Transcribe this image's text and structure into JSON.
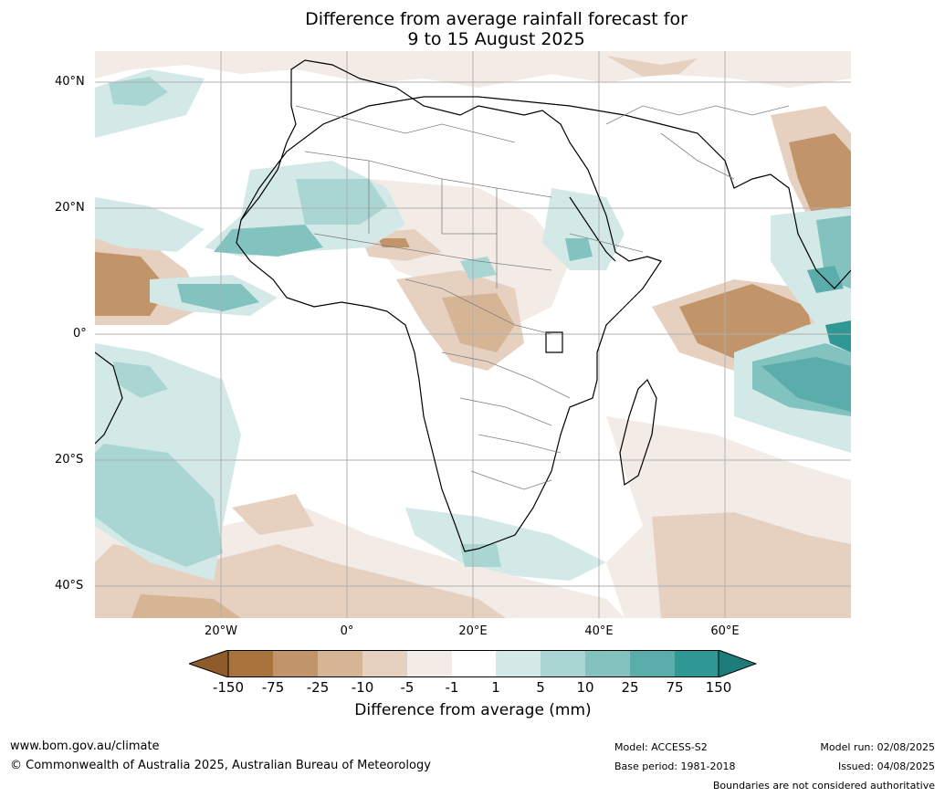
{
  "title": {
    "line1": "Difference from average rainfall forecast for",
    "line2": "9 to 15 August 2025"
  },
  "axes": {
    "lat_ticks": [
      "40°N",
      "20°N",
      "0°",
      "20°S",
      "40°S"
    ],
    "lon_ticks": [
      "20°W",
      "0°",
      "20°E",
      "40°E",
      "60°E"
    ]
  },
  "colorbar": {
    "labels": [
      "-150",
      "-75",
      "-25",
      "-10",
      "-5",
      "-1",
      "1",
      "5",
      "10",
      "25",
      "75",
      "150"
    ],
    "title": "Difference from average (mm)",
    "colors": [
      "#8f5b2b",
      "#a9733d",
      "#c29469",
      "#d6b595",
      "#e6d1c1",
      "#f3ebe5",
      "#ffffff",
      "#d3e9e7",
      "#a9d6d3",
      "#82c2bf",
      "#5aadab",
      "#2f9895",
      "#1e7d7b"
    ]
  },
  "footer": {
    "url": "www.bom.gov.au/climate",
    "copyright": "© Commonwealth of Australia 2025, Australian Bureau of Meteorology",
    "model": "Model: ACCESS-S2",
    "base_period": "Base period: 1981-2018",
    "model_run": "Model run: 02/08/2025",
    "issued": "Issued: 04/08/2025",
    "disclaimer": "Boundaries are not considered authoritative"
  }
}
